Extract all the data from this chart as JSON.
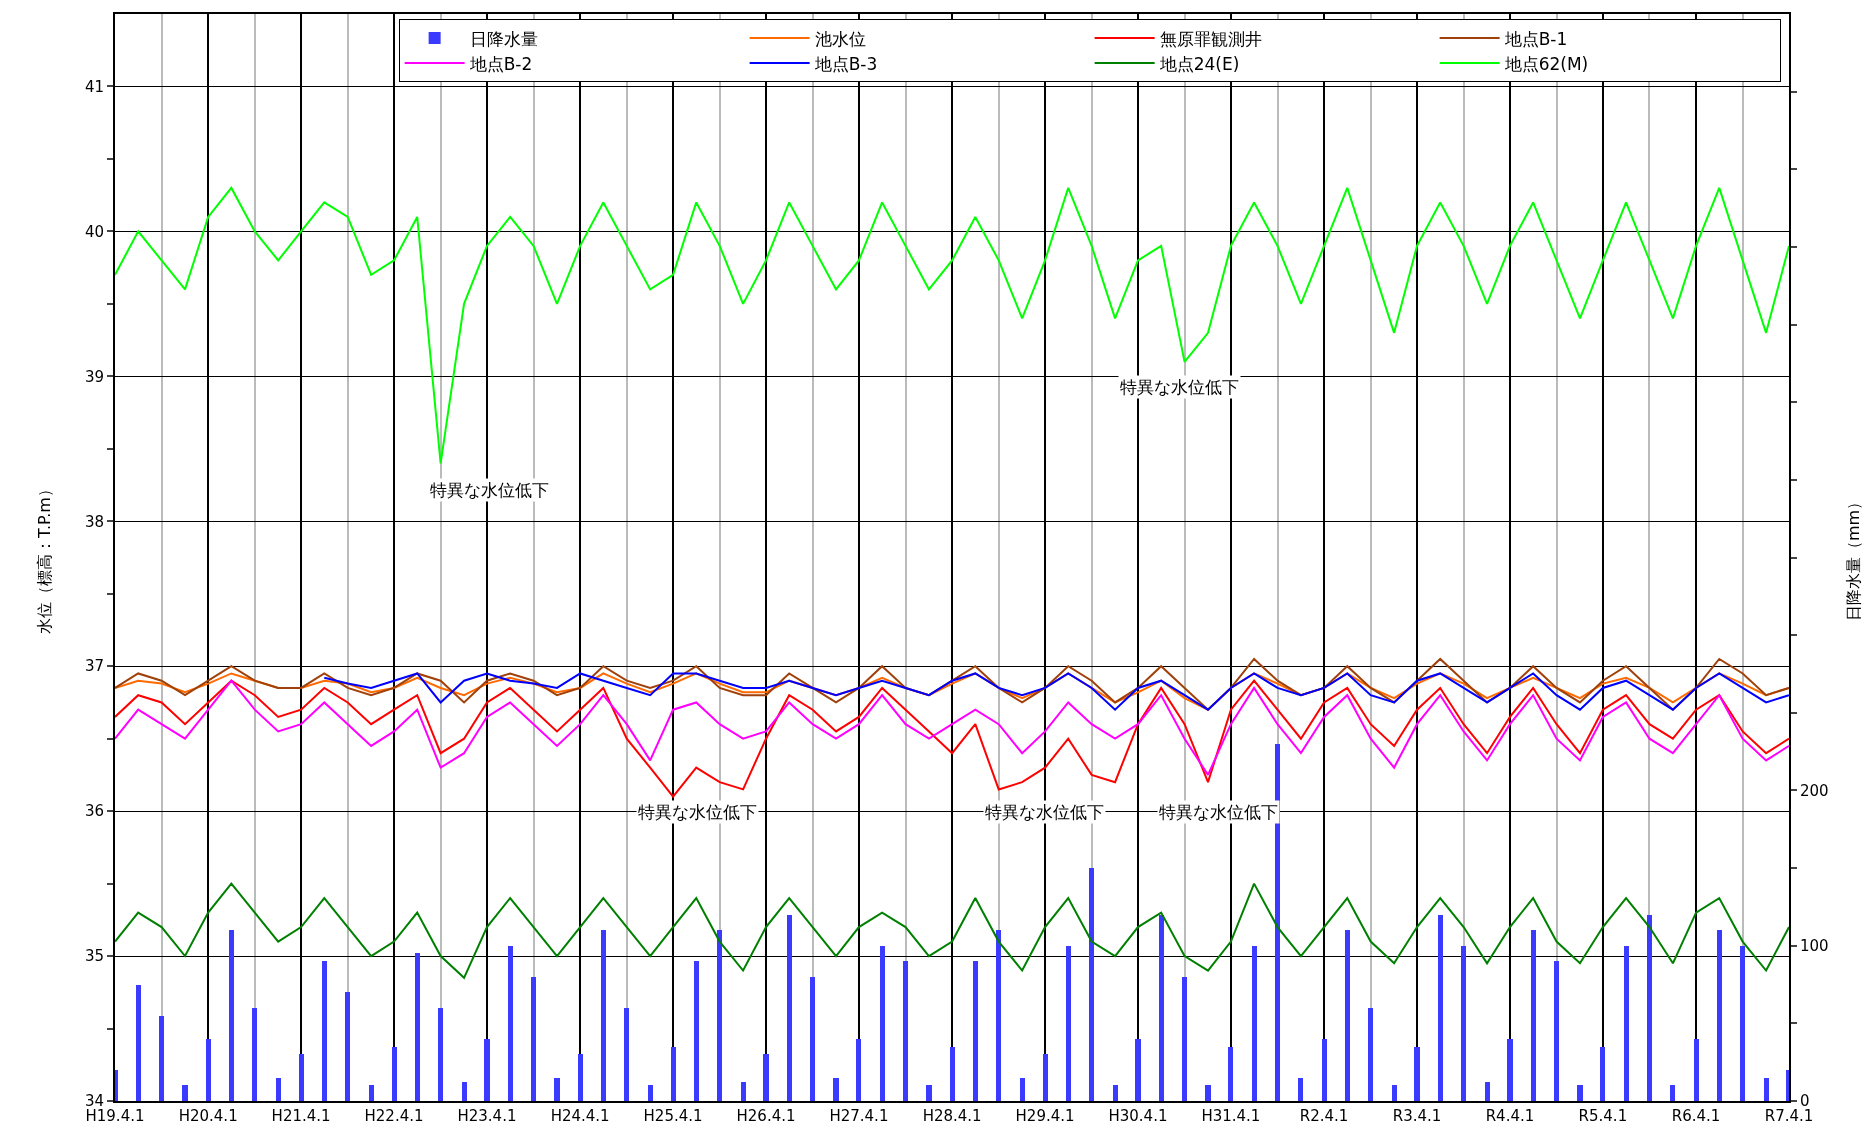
{
  "chart_data": {
    "type": "line",
    "ylabel": "水位（標高：T.P.m）",
    "y2label": "日降水量（mm）",
    "x": [
      "2007-04-01",
      "2007-07-01",
      "2007-10-01",
      "2008-01-01",
      "2008-04-01",
      "2008-07-01",
      "2008-10-01",
      "2009-01-01",
      "2009-04-01",
      "2009-07-01",
      "2009-10-01",
      "2010-01-01",
      "2010-04-01",
      "2010-07-01",
      "2010-10-01",
      "2011-01-01",
      "2011-04-01",
      "2011-07-01",
      "2011-10-01",
      "2012-01-01",
      "2012-04-01",
      "2012-07-01",
      "2012-10-01",
      "2013-01-01",
      "2013-04-01",
      "2013-07-01",
      "2013-10-01",
      "2014-01-01",
      "2014-04-01",
      "2014-07-01",
      "2014-10-01",
      "2015-01-01",
      "2015-04-01",
      "2015-07-01",
      "2015-10-01",
      "2016-01-01",
      "2016-04-01",
      "2016-07-01",
      "2016-10-01",
      "2017-01-01",
      "2017-04-01",
      "2017-07-01",
      "2017-10-01",
      "2018-01-01",
      "2018-04-01",
      "2018-07-01",
      "2018-10-01",
      "2019-01-01",
      "2019-04-01",
      "2019-07-01",
      "2019-10-01",
      "2020-01-01",
      "2020-04-01",
      "2020-07-01",
      "2020-10-01",
      "2021-01-01",
      "2021-04-01",
      "2021-07-01",
      "2021-10-01",
      "2022-01-01",
      "2022-04-01",
      "2022-07-01",
      "2022-10-01",
      "2023-01-01",
      "2023-04-01",
      "2023-07-01",
      "2023-10-01",
      "2024-01-01",
      "2024-04-01",
      "2024-07-01",
      "2024-10-01",
      "2025-01-01",
      "2025-04-01"
    ],
    "series": [
      {
        "name": "日降水量",
        "type": "bar",
        "axis": "y2",
        "color": "#3b3bff",
        "values": [
          20,
          75,
          55,
          10,
          40,
          110,
          60,
          15,
          30,
          90,
          70,
          10,
          35,
          95,
          60,
          12,
          40,
          100,
          80,
          15,
          30,
          110,
          60,
          10,
          35,
          90,
          110,
          12,
          30,
          120,
          80,
          15,
          40,
          100,
          90,
          10,
          35,
          90,
          110,
          15,
          30,
          100,
          150,
          10,
          40,
          120,
          80,
          10,
          35,
          100,
          230,
          15,
          40,
          110,
          60,
          10,
          35,
          120,
          100,
          12,
          40,
          110,
          90,
          10,
          35,
          100,
          120,
          10,
          40,
          110,
          100,
          15,
          20
        ]
      },
      {
        "name": "池水位",
        "color": "#ff6a00",
        "values": [
          36.85,
          36.9,
          36.88,
          36.82,
          36.88,
          36.95,
          36.9,
          36.85,
          36.85,
          36.9,
          36.88,
          36.82,
          36.85,
          36.92,
          36.85,
          36.8,
          36.88,
          36.92,
          36.88,
          36.82,
          36.85,
          36.95,
          36.88,
          36.82,
          36.88,
          36.95,
          36.88,
          36.82,
          36.82,
          36.9,
          36.85,
          36.8,
          36.85,
          36.92,
          36.85,
          36.8,
          36.88,
          36.95,
          36.85,
          36.78,
          36.85,
          36.95,
          36.85,
          36.75,
          36.82,
          36.9,
          36.78,
          36.7,
          36.85,
          36.95,
          36.88,
          36.8,
          36.85,
          36.95,
          36.85,
          36.78,
          36.88,
          36.95,
          36.88,
          36.78,
          36.85,
          36.92,
          36.85,
          36.78,
          36.88,
          36.92,
          36.85,
          36.75,
          36.85,
          36.95,
          36.88,
          36.8,
          36.85
        ]
      },
      {
        "name": "無原罪観測井",
        "color": "#ff0000",
        "values": [
          36.65,
          36.8,
          36.75,
          36.6,
          36.75,
          36.9,
          36.8,
          36.65,
          36.7,
          36.85,
          36.75,
          36.6,
          36.7,
          36.8,
          36.4,
          36.5,
          36.75,
          36.85,
          36.7,
          36.55,
          36.7,
          36.85,
          36.5,
          36.3,
          36.1,
          36.3,
          36.2,
          36.15,
          36.5,
          36.8,
          36.7,
          36.55,
          36.65,
          36.85,
          36.7,
          36.55,
          36.4,
          36.6,
          36.15,
          36.2,
          36.3,
          36.5,
          36.25,
          36.2,
          36.6,
          36.85,
          36.6,
          36.2,
          36.7,
          36.9,
          36.7,
          36.5,
          36.75,
          36.85,
          36.6,
          36.45,
          36.7,
          36.85,
          36.6,
          36.4,
          36.65,
          36.85,
          36.6,
          36.4,
          36.7,
          36.8,
          36.6,
          36.5,
          36.7,
          36.8,
          36.55,
          36.4,
          36.5
        ]
      },
      {
        "name": "地点B-1",
        "color": "#a0400a",
        "values": [
          36.85,
          36.95,
          36.9,
          36.8,
          36.9,
          37.0,
          36.9,
          36.85,
          36.85,
          36.95,
          36.85,
          36.8,
          36.85,
          36.95,
          36.9,
          36.75,
          36.9,
          36.95,
          36.9,
          36.8,
          36.85,
          37.0,
          36.9,
          36.85,
          36.9,
          37.0,
          36.85,
          36.8,
          36.8,
          36.95,
          36.85,
          36.75,
          36.85,
          37.0,
          36.85,
          36.8,
          36.9,
          37.0,
          36.85,
          36.75,
          36.85,
          37.0,
          36.9,
          36.75,
          36.85,
          37.0,
          36.85,
          36.7,
          36.85,
          37.05,
          36.9,
          36.8,
          36.85,
          37.0,
          36.85,
          36.75,
          36.9,
          37.05,
          36.9,
          36.75,
          36.85,
          37.0,
          36.85,
          36.75,
          36.9,
          37.0,
          36.85,
          36.7,
          36.85,
          37.05,
          36.95,
          36.8,
          36.85
        ]
      },
      {
        "name": "地点B-2",
        "color": "#ff00ff",
        "values": [
          36.5,
          36.7,
          36.6,
          36.5,
          36.7,
          36.9,
          36.7,
          36.55,
          36.6,
          36.75,
          36.6,
          36.45,
          36.55,
          36.7,
          36.3,
          36.4,
          36.65,
          36.75,
          36.6,
          36.45,
          36.6,
          36.8,
          36.6,
          36.35,
          36.7,
          36.75,
          36.6,
          36.5,
          36.55,
          36.75,
          36.6,
          36.5,
          36.6,
          36.8,
          36.6,
          36.5,
          36.6,
          36.7,
          36.6,
          36.4,
          36.55,
          36.75,
          36.6,
          36.5,
          36.6,
          36.8,
          36.5,
          36.25,
          36.6,
          36.85,
          36.6,
          36.4,
          36.65,
          36.8,
          36.5,
          36.3,
          36.6,
          36.8,
          36.55,
          36.35,
          36.6,
          36.8,
          36.5,
          36.35,
          36.65,
          36.75,
          36.5,
          36.4,
          36.6,
          36.8,
          36.5,
          36.35,
          36.45
        ]
      },
      {
        "name": "地点B-3",
        "color": "#0000ff",
        "values": [
          null,
          null,
          null,
          null,
          null,
          null,
          null,
          null,
          null,
          36.92,
          36.88,
          36.85,
          36.9,
          36.95,
          36.75,
          36.9,
          36.95,
          36.9,
          36.88,
          36.85,
          36.95,
          36.9,
          36.85,
          36.8,
          36.95,
          36.95,
          36.9,
          36.85,
          36.85,
          36.9,
          36.85,
          36.8,
          36.85,
          36.9,
          36.85,
          36.8,
          36.9,
          36.95,
          36.85,
          36.8,
          36.85,
          36.95,
          36.85,
          36.7,
          36.85,
          36.9,
          36.8,
          36.7,
          36.85,
          36.95,
          36.85,
          36.8,
          36.85,
          36.95,
          36.8,
          36.75,
          36.9,
          36.95,
          36.85,
          36.75,
          36.85,
          36.95,
          36.8,
          36.7,
          36.85,
          36.9,
          36.8,
          36.7,
          36.85,
          36.95,
          36.85,
          36.75,
          36.8
        ]
      },
      {
        "name": "地点24(E)",
        "color": "#008000",
        "values": [
          35.1,
          35.3,
          35.2,
          35.0,
          35.3,
          35.5,
          35.3,
          35.1,
          35.2,
          35.4,
          35.2,
          35.0,
          35.1,
          35.3,
          35.0,
          34.85,
          35.2,
          35.4,
          35.2,
          35.0,
          35.2,
          35.4,
          35.2,
          35.0,
          35.2,
          35.4,
          35.1,
          34.9,
          35.2,
          35.4,
          35.2,
          35.0,
          35.2,
          35.3,
          35.2,
          35.0,
          35.1,
          35.4,
          35.1,
          34.9,
          35.2,
          35.4,
          35.1,
          35.0,
          35.2,
          35.3,
          35.0,
          34.9,
          35.1,
          35.5,
          35.2,
          35.0,
          35.2,
          35.4,
          35.1,
          34.95,
          35.2,
          35.4,
          35.2,
          34.95,
          35.2,
          35.4,
          35.1,
          34.95,
          35.2,
          35.4,
          35.2,
          34.95,
          35.3,
          35.4,
          35.1,
          34.9,
          35.2
        ]
      },
      {
        "name": "地点62(M)",
        "color": "#00ff00",
        "values": [
          39.7,
          40.0,
          39.8,
          39.6,
          40.1,
          40.3,
          40.0,
          39.8,
          40.0,
          40.2,
          40.1,
          39.7,
          39.8,
          40.1,
          38.4,
          39.5,
          39.9,
          40.1,
          39.9,
          39.5,
          39.9,
          40.2,
          39.9,
          39.6,
          39.7,
          40.2,
          39.9,
          39.5,
          39.8,
          40.2,
          39.9,
          39.6,
          39.8,
          40.2,
          39.9,
          39.6,
          39.8,
          40.1,
          39.8,
          39.4,
          39.8,
          40.3,
          39.9,
          39.4,
          39.8,
          39.9,
          39.1,
          39.3,
          39.9,
          40.2,
          39.9,
          39.5,
          39.9,
          40.3,
          39.8,
          39.3,
          39.9,
          40.2,
          39.9,
          39.5,
          39.9,
          40.2,
          39.8,
          39.4,
          39.8,
          40.2,
          39.8,
          39.4,
          39.9,
          40.3,
          39.8,
          39.3,
          39.9
        ]
      }
    ],
    "xlim": [
      "2007-04-01",
      "2025-04-01"
    ],
    "xticks": [
      {
        "value": "2007-04-01",
        "label": "H19.4.1"
      },
      {
        "value": "2007-10-01",
        "label": null
      },
      {
        "value": "2008-04-01",
        "label": "H20.4.1"
      },
      {
        "value": "2008-10-01",
        "label": null
      },
      {
        "value": "2009-04-01",
        "label": "H21.4.1"
      },
      {
        "value": "2009-10-01",
        "label": null
      },
      {
        "value": "2010-04-01",
        "label": "H22.4.1"
      },
      {
        "value": "2010-10-01",
        "label": null
      },
      {
        "value": "2011-04-01",
        "label": "H23.4.1"
      },
      {
        "value": "2011-10-01",
        "label": null
      },
      {
        "value": "2012-04-01",
        "label": "H24.4.1"
      },
      {
        "value": "2012-10-01",
        "label": null
      },
      {
        "value": "2013-04-01",
        "label": "H25.4.1"
      },
      {
        "value": "2013-10-01",
        "label": null
      },
      {
        "value": "2014-04-01",
        "label": "H26.4.1"
      },
      {
        "value": "2014-10-01",
        "label": null
      },
      {
        "value": "2015-04-01",
        "label": "H27.4.1"
      },
      {
        "value": "2015-10-01",
        "label": null
      },
      {
        "value": "2016-04-01",
        "label": "H28.4.1"
      },
      {
        "value": "2016-10-01",
        "label": null
      },
      {
        "value": "2017-04-01",
        "label": "H29.4.1"
      },
      {
        "value": "2017-10-01",
        "label": null
      },
      {
        "value": "2018-04-01",
        "label": "H30.4.1"
      },
      {
        "value": "2018-10-01",
        "label": null
      },
      {
        "value": "2019-04-01",
        "label": "H31.4.1"
      },
      {
        "value": "2019-10-01",
        "label": null
      },
      {
        "value": "2020-04-01",
        "label": "R2.4.1"
      },
      {
        "value": "2020-10-01",
        "label": null
      },
      {
        "value": "2021-04-01",
        "label": "R3.4.1"
      },
      {
        "value": "2021-10-01",
        "label": null
      },
      {
        "value": "2022-04-01",
        "label": "R4.4.1"
      },
      {
        "value": "2022-10-01",
        "label": null
      },
      {
        "value": "2023-04-01",
        "label": "R5.4.1"
      },
      {
        "value": "2023-10-01",
        "label": null
      },
      {
        "value": "2024-04-01",
        "label": "R6.4.1"
      },
      {
        "value": "2024-10-01",
        "label": null
      },
      {
        "value": "2025-04-01",
        "label": "R7.4.1"
      }
    ],
    "ylim": [
      34,
      41.5
    ],
    "yticks": [
      34,
      {
        "value": 34.5,
        "label": null
      },
      35,
      {
        "value": 35.5,
        "label": null
      },
      36,
      {
        "value": 36.5,
        "label": null
      },
      37,
      {
        "value": 37.5,
        "label": null
      },
      38,
      {
        "value": 38.5,
        "label": null
      },
      39,
      {
        "value": 39.5,
        "label": null
      },
      40,
      {
        "value": 40.5,
        "label": null
      },
      41
    ],
    "y2lim": [
      0,
      700
    ],
    "y2ticks": [
      0,
      {
        "value": 50,
        "label": null
      },
      100,
      {
        "value": 150,
        "label": null
      },
      200,
      {
        "value": 250,
        "label": null
      },
      {
        "value": 300,
        "label": null
      },
      {
        "value": 350,
        "label": null
      },
      {
        "value": 400,
        "label": null
      },
      {
        "value": 450,
        "label": null
      },
      {
        "value": 500,
        "label": null
      },
      {
        "value": 550,
        "label": null
      },
      {
        "value": 600,
        "label": null
      },
      {
        "value": 650,
        "label": null
      }
    ],
    "annotations": [
      "特異な水位低下",
      "特異な水位低下",
      "特異な水位低下",
      "特異な水位低下",
      "特異な水位低下"
    ],
    "grid": true,
    "legend": "top right",
    "line_style": "solid",
    "marker": "none"
  }
}
